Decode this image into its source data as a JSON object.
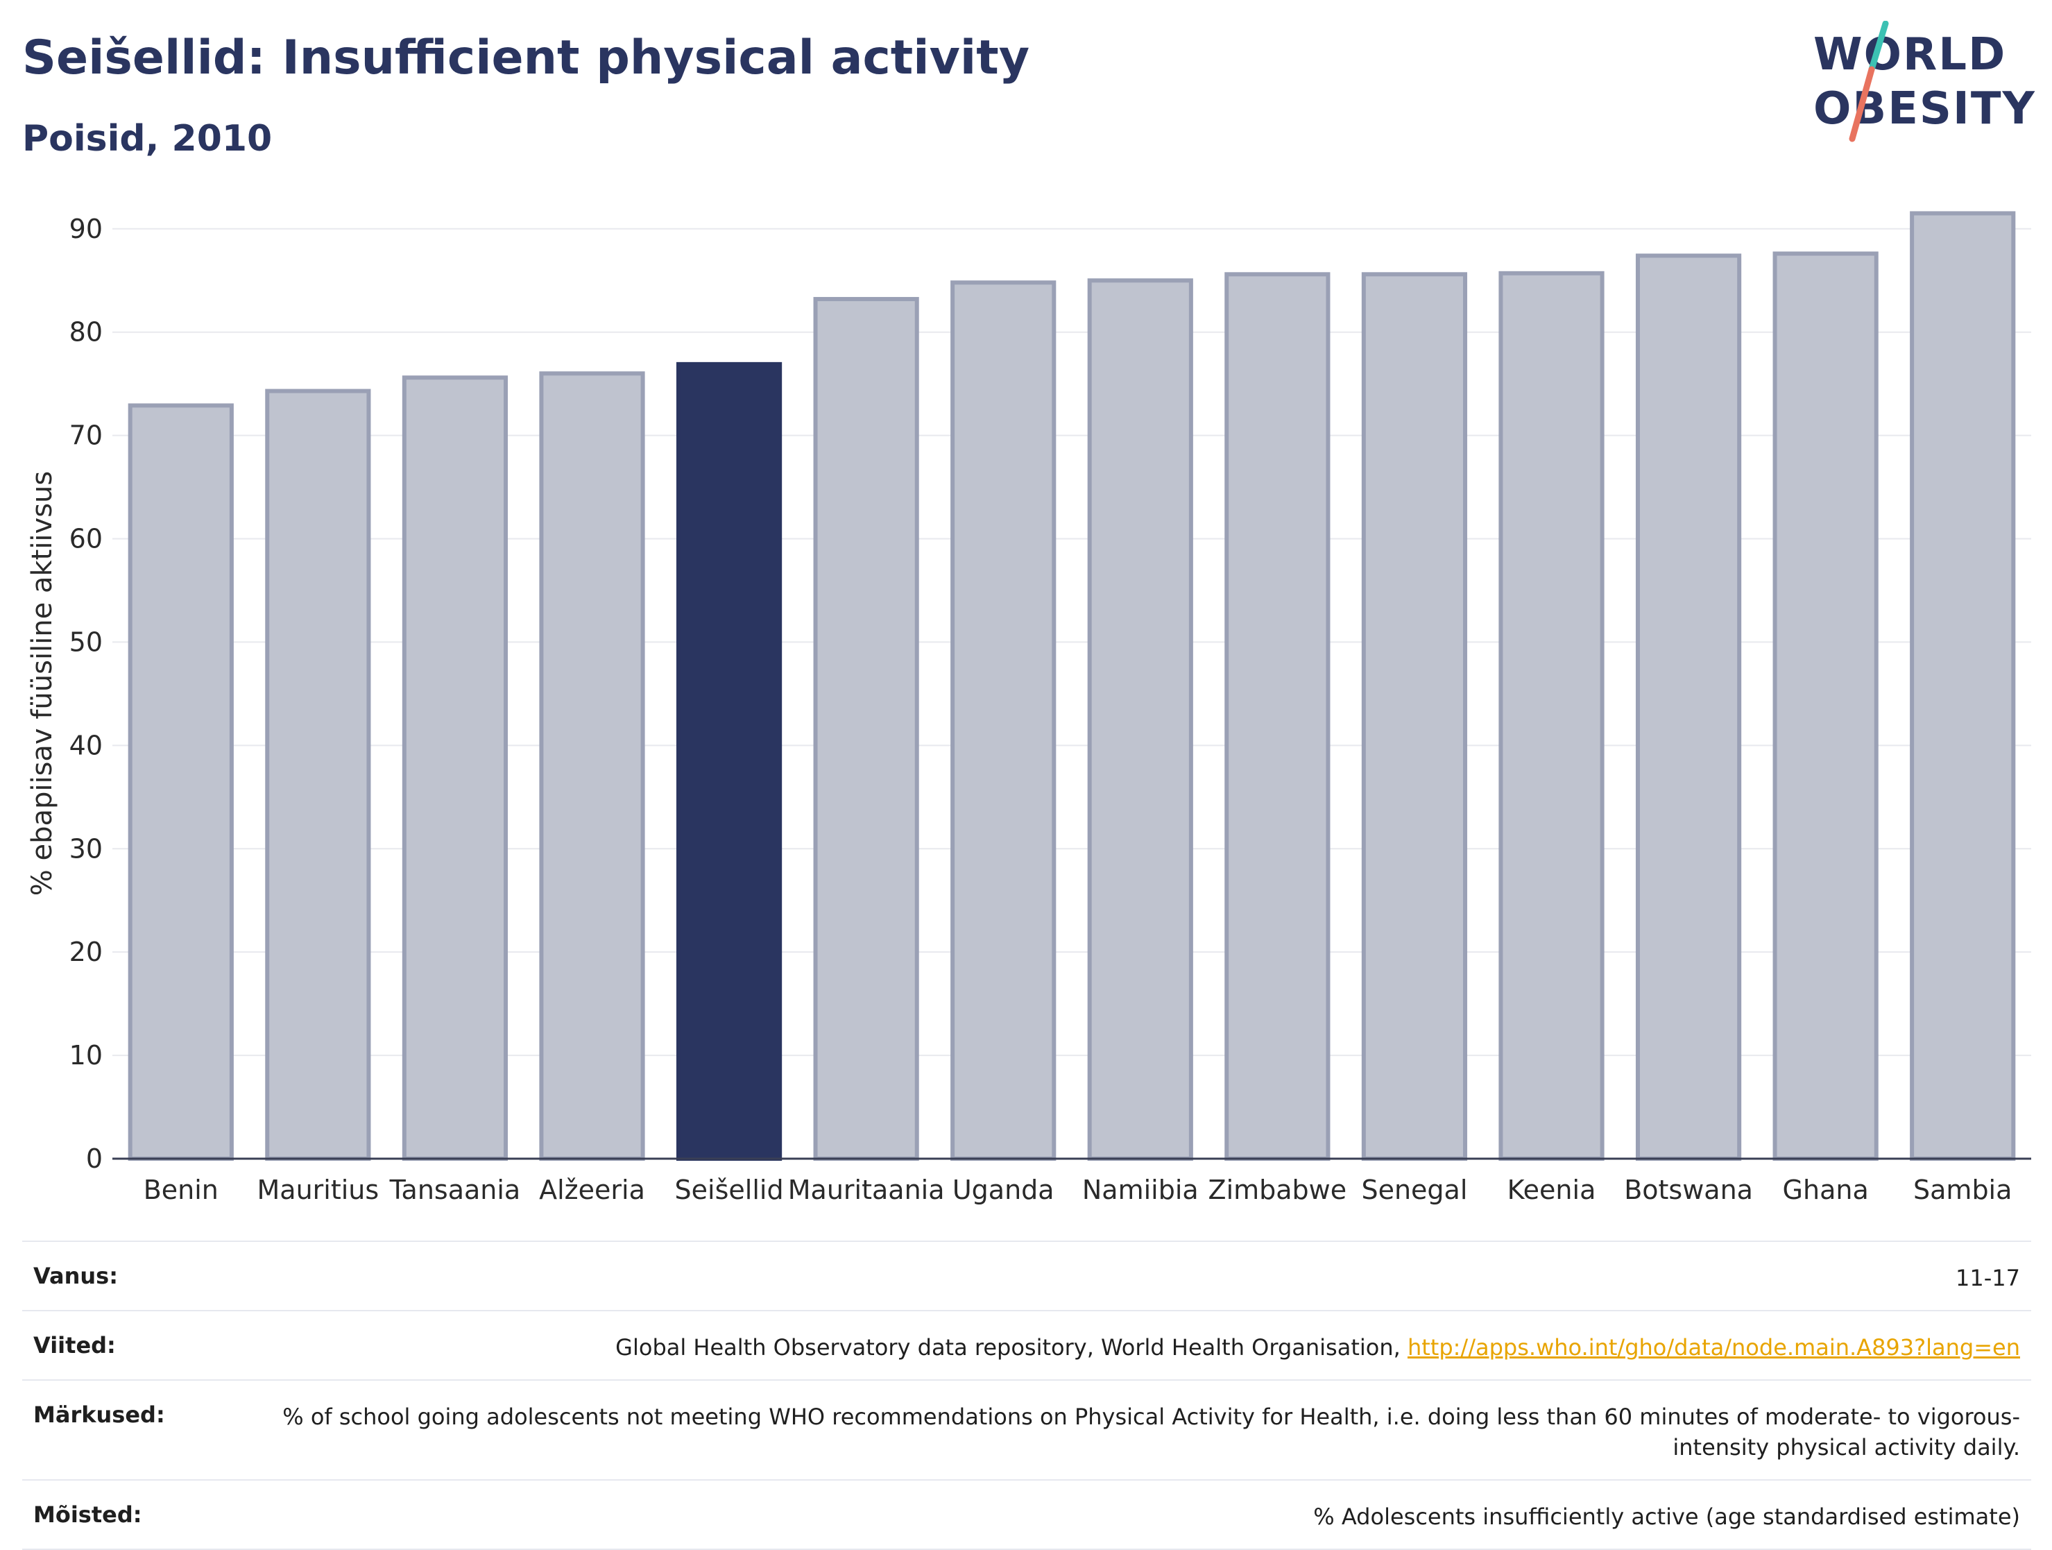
{
  "header": {
    "title": "Seišellid: Insufficient physical activity",
    "subtitle": "Poisid, 2010"
  },
  "logo": {
    "line1": "WORLD",
    "line2": "OBESITY"
  },
  "colors": {
    "highlight": "#2a3560",
    "bar": "#bfc3cf",
    "bar_border": "#9aa0b5",
    "accent_teal": "#3cc1b3",
    "accent_coral": "#e8735f"
  },
  "chart_data": {
    "type": "bar",
    "title": "Seišellid: Insufficient physical activity",
    "subtitle": "Poisid, 2010",
    "xlabel": "",
    "ylabel": "% ebapiisav füüsiline aktiivsus",
    "ylim": [
      0,
      92
    ],
    "yticks": [
      0,
      10,
      20,
      30,
      40,
      50,
      60,
      70,
      80,
      90
    ],
    "grid": true,
    "categories": [
      "Benin",
      "Mauritius",
      "Tansaania",
      "Alžeeria",
      "Seišellid",
      "Mauritaania",
      "Uganda",
      "Namiibia",
      "Zimbabwe",
      "Senegal",
      "Keenia",
      "Botswana",
      "Ghana",
      "Sambia"
    ],
    "values": [
      72.9,
      74.3,
      75.6,
      76.0,
      76.9,
      83.2,
      84.8,
      85.0,
      85.6,
      85.6,
      85.7,
      87.4,
      87.6,
      91.5
    ],
    "highlight": "Seišellid"
  },
  "meta": {
    "age_label": "Vanus:",
    "age_value": "11-17",
    "refs_label": "Viited:",
    "refs_text": "Global Health Observatory data repository, World Health Organisation, ",
    "refs_link": "http://apps.who.int/gho/data/node.main.A893?lang=en",
    "notes_label": "Märkused:",
    "notes_value": "% of school going adolescents not meeting WHO recommendations on Physical Activity for Health, i.e. doing less than 60 minutes of moderate- to vigorous-intensity physical activity daily.",
    "defs_label": "Mõisted:",
    "defs_value": "% Adolescents insufficiently active (age standardised estimate)"
  }
}
